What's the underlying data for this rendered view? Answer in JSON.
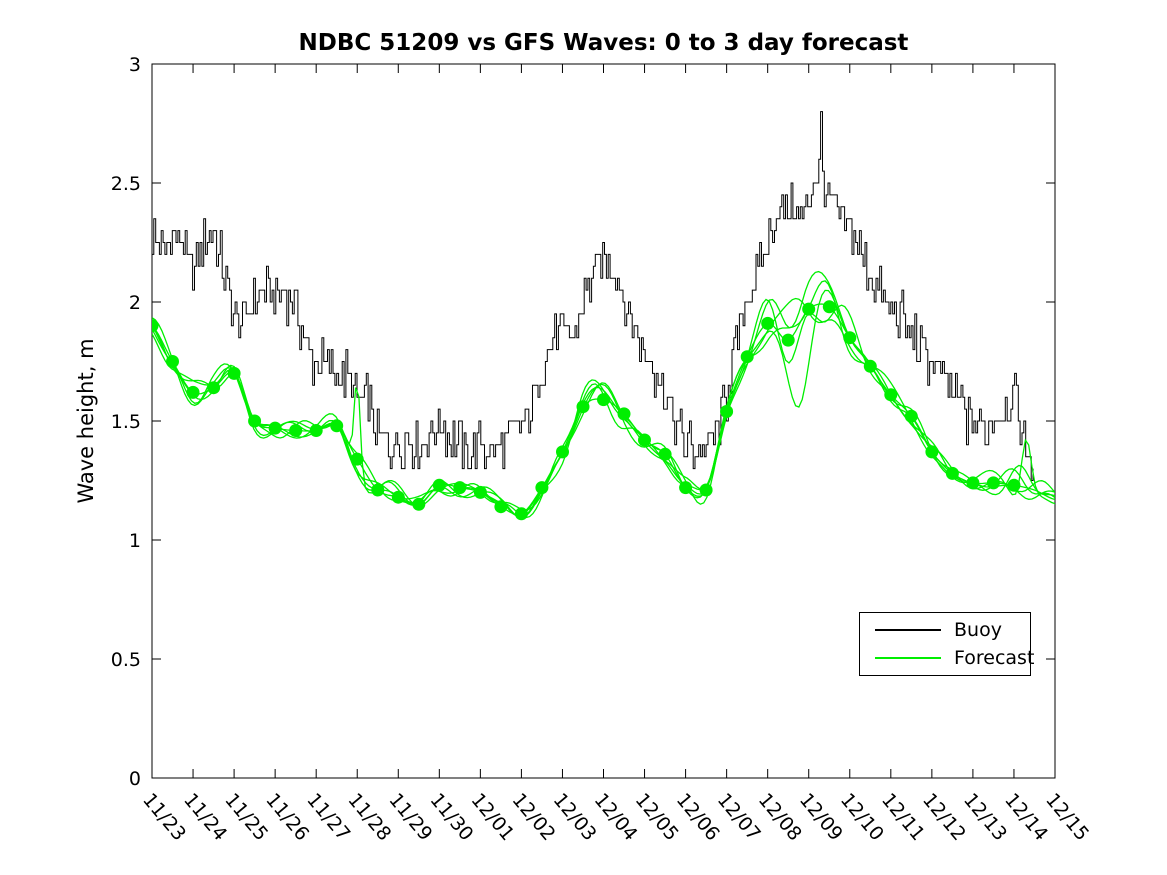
{
  "page": {
    "title": "NDBC 51209 vs GFS Waves: 0 to 3 day forecast"
  },
  "chart_data": {
    "type": "line",
    "title": "NDBC 51209 vs GFS Waves: 0 to 3 day forecast",
    "xlabel": "",
    "ylabel": "Wave height, m",
    "ylim": [
      0,
      3
    ],
    "ytick_values": [
      0,
      0.5,
      1,
      1.5,
      2,
      2.5,
      3
    ],
    "ytick_labels": [
      "0",
      "0.5",
      "1",
      "1.5",
      "2",
      "2.5",
      "3"
    ],
    "xtick_labels": [
      "11/23",
      "11/24",
      "11/25",
      "11/26",
      "11/27",
      "11/28",
      "11/29",
      "11/30",
      "12/01",
      "12/02",
      "12/03",
      "12/04",
      "12/05",
      "12/06",
      "12/07",
      "12/08",
      "12/09",
      "12/10",
      "12/11",
      "12/12",
      "12/13",
      "12/14",
      "12/15"
    ],
    "x_unit": "days since 11/23, axis spans 11/23 through 12/15",
    "grid": false,
    "background": "#ffffff",
    "legend": {
      "position": "inside lower right",
      "entries": [
        {
          "label": "Buoy",
          "color": "#000000"
        },
        {
          "label": "Forecast",
          "color": "#00ee00"
        }
      ]
    },
    "series": [
      {
        "name": "Buoy",
        "type": "noisy-step-line",
        "color": "#000000",
        "x_start": 0,
        "x_step": 0.25,
        "y": [
          2.28,
          2.2,
          2.28,
          2.25,
          2.12,
          2.25,
          2.3,
          2.1,
          1.95,
          1.92,
          2.02,
          2.05,
          2.02,
          2.05,
          1.95,
          1.82,
          1.72,
          1.75,
          1.68,
          1.7,
          1.58,
          1.6,
          1.44,
          1.4,
          1.4,
          1.44,
          1.4,
          1.46,
          1.5,
          1.44,
          1.38,
          1.37,
          1.4,
          1.34,
          1.4,
          1.44,
          1.47,
          1.57,
          1.72,
          1.85,
          1.88,
          1.85,
          2.0,
          2.12,
          2.18,
          2.15,
          2.02,
          1.9,
          1.78,
          1.72,
          1.62,
          1.48,
          1.4,
          1.36,
          1.4,
          1.45,
          1.62,
          1.85,
          2.02,
          2.12,
          2.25,
          2.38,
          2.4,
          2.35,
          2.42,
          2.58,
          2.42,
          2.35,
          2.3,
          2.22,
          2.12,
          2.02,
          1.95,
          1.95,
          1.85,
          1.8,
          1.75,
          1.7,
          1.62,
          1.55,
          1.5,
          1.45,
          1.52,
          1.55,
          1.62,
          1.4,
          1.3
        ],
        "noise_amplitude_m": 0.09,
        "quantize_step_m": 0.05,
        "spikes": [
          {
            "x": 16.3,
            "y": 2.8
          }
        ]
      },
      {
        "name": "Forecast",
        "type": "ensemble-line-with-markers",
        "color": "#00ee00",
        "marker": "filled-circle",
        "marker_size_px": 13,
        "x": [
          0,
          0.5,
          1,
          1.5,
          2,
          2.5,
          3,
          3.5,
          4,
          4.5,
          5,
          5.5,
          6,
          6.5,
          7,
          7.5,
          8,
          8.5,
          9,
          9.5,
          10,
          10.5,
          11,
          11.5,
          12,
          12.5,
          13,
          13.5,
          14,
          14.5,
          15,
          15.5,
          16,
          16.5,
          17,
          17.5,
          18,
          18.5,
          19,
          19.5,
          20,
          20.5,
          21
        ],
        "y": [
          1.9,
          1.75,
          1.62,
          1.64,
          1.7,
          1.5,
          1.47,
          1.46,
          1.46,
          1.48,
          1.34,
          1.21,
          1.18,
          1.15,
          1.23,
          1.22,
          1.2,
          1.14,
          1.11,
          1.22,
          1.37,
          1.56,
          1.59,
          1.53,
          1.42,
          1.36,
          1.22,
          1.21,
          1.54,
          1.77,
          1.91,
          1.84,
          1.97,
          1.98,
          1.85,
          1.73,
          1.61,
          1.52,
          1.37,
          1.28,
          1.24,
          1.24,
          1.23
        ],
        "line_tail": {
          "x": [
            21.5,
            22
          ],
          "y": [
            1.21,
            1.17
          ]
        },
        "ensemble": {
          "member_count": 6,
          "typical_spread_m": 0.04,
          "peak_spread_m": 0.25,
          "notable_excursions": [
            {
              "x": 5.0,
              "y": 1.73,
              "width_days": 0.07
            },
            {
              "x": 16.0,
              "y": 2.19,
              "width_days": 0.3
            },
            {
              "x": 21.3,
              "y": 1.49,
              "width_days": 0.12
            },
            {
              "x": 15.8,
              "y": 1.62,
              "width_days": 0.25
            }
          ]
        }
      }
    ]
  }
}
